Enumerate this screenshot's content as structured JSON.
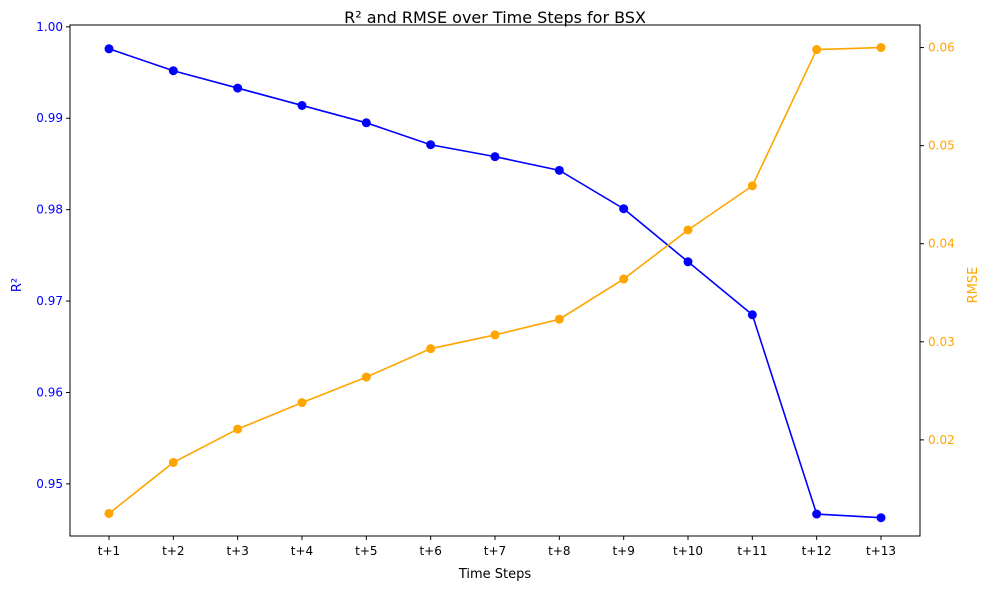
{
  "chart_data": {
    "type": "line",
    "title": "R² and RMSE over Time Steps for BSX",
    "xlabel": "Time Steps",
    "categories": [
      "t+1",
      "t+2",
      "t+3",
      "t+4",
      "t+5",
      "t+6",
      "t+7",
      "t+8",
      "t+9",
      "t+10",
      "t+11",
      "t+12",
      "t+13"
    ],
    "series": [
      {
        "name": "R²",
        "axis": "left",
        "color": "#0000ff",
        "values": [
          0.9976,
          0.9952,
          0.9933,
          0.9914,
          0.9895,
          0.9871,
          0.9858,
          0.9843,
          0.9801,
          0.9743,
          0.9685,
          0.9467,
          0.9463
        ]
      },
      {
        "name": "RMSE",
        "axis": "right",
        "color": "#ffa500",
        "values": [
          0.0125,
          0.0177,
          0.0211,
          0.0238,
          0.0264,
          0.0293,
          0.0307,
          0.0323,
          0.0364,
          0.0414,
          0.0459,
          0.0598,
          0.06
        ]
      }
    ],
    "y_left": {
      "label": "R²",
      "color": "#0000ff",
      "ylim": [
        0.9443,
        1.0002
      ],
      "ticks": [
        0.95,
        0.96,
        0.97,
        0.98,
        0.99,
        1.0
      ],
      "tick_labels": [
        "0.95",
        "0.96",
        "0.97",
        "0.98",
        "0.99",
        "1.00"
      ]
    },
    "y_right": {
      "label": "RMSE",
      "color": "#ffa500",
      "ylim": [
        0.0102,
        0.0623
      ],
      "ticks": [
        0.02,
        0.03,
        0.04,
        0.05,
        0.06
      ],
      "tick_labels": [
        "0.02",
        "0.03",
        "0.04",
        "0.05",
        "0.06"
      ]
    },
    "grid": false,
    "legend": "none"
  }
}
